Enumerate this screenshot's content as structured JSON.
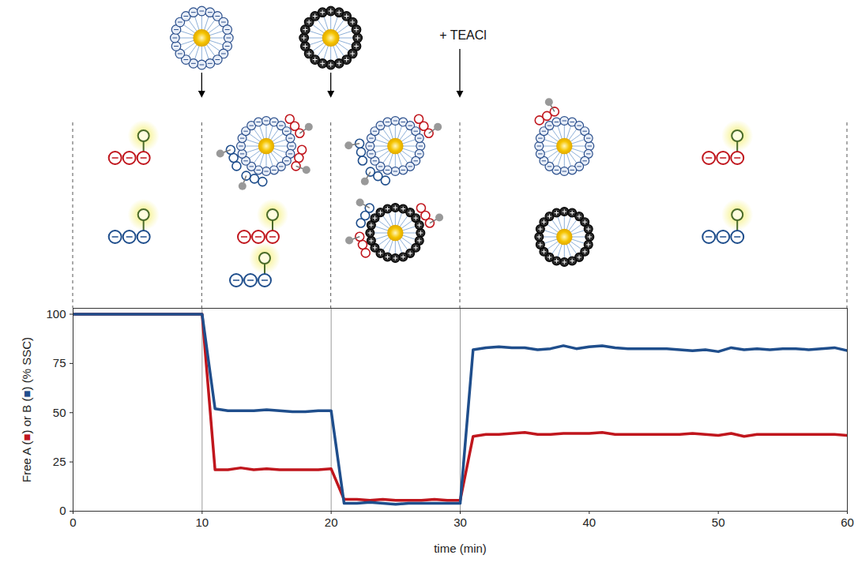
{
  "chart_data": {
    "type": "line",
    "x_label": "time (min)",
    "y_label": "Free A (■) or B (■) (% SSC)",
    "x": [
      0,
      1,
      2,
      3,
      4,
      5,
      6,
      7,
      8,
      9,
      10,
      11,
      12,
      13,
      14,
      15,
      16,
      17,
      18,
      19,
      20,
      21,
      22,
      23,
      24,
      25,
      26,
      27,
      28,
      29,
      30,
      31,
      32,
      33,
      34,
      35,
      36,
      37,
      38,
      39,
      40,
      41,
      42,
      43,
      44,
      45,
      46,
      47,
      48,
      49,
      50,
      51,
      52,
      53,
      54,
      55,
      56,
      57,
      58,
      59,
      60
    ],
    "series": [
      {
        "name": "A",
        "color": "#c0161d",
        "values": [
          100,
          100,
          100,
          100,
          100,
          100,
          100,
          100,
          100,
          100,
          100,
          21,
          21,
          22,
          21,
          21.5,
          21,
          21,
          21,
          21,
          21.5,
          6,
          6,
          5.5,
          6,
          5.5,
          5.5,
          5.5,
          6,
          5.5,
          5.5,
          38,
          39,
          39,
          39.5,
          40,
          39,
          39,
          39.5,
          39.5,
          39.5,
          40,
          39,
          39,
          39,
          39,
          39,
          39,
          39.5,
          39,
          38.5,
          39.5,
          38,
          39,
          39,
          39,
          39,
          39,
          39,
          39,
          38.5
        ]
      },
      {
        "name": "B",
        "color": "#1f4e8c",
        "values": [
          100,
          100,
          100,
          100,
          100,
          100,
          100,
          100,
          100,
          100,
          100,
          52,
          51,
          51,
          51,
          51.5,
          51,
          50.5,
          50.5,
          51,
          51,
          4,
          4,
          4.5,
          4,
          3.5,
          4,
          4,
          4,
          4,
          4,
          82,
          83,
          83.5,
          83,
          83,
          82,
          82.5,
          84,
          82.5,
          83.5,
          84,
          83,
          82.5,
          82.5,
          82.5,
          82.5,
          82,
          81.5,
          82,
          81,
          83,
          82,
          82.5,
          82,
          82.5,
          82.5,
          82,
          82.5,
          83,
          81.5
        ]
      }
    ],
    "xlim": [
      0,
      60
    ],
    "xticks": [
      0,
      10,
      20,
      30,
      40,
      50,
      60
    ],
    "ylim": [
      0,
      103
    ],
    "yticks": [
      0,
      25,
      50,
      75,
      100
    ],
    "grid": false,
    "event_lines": [
      10,
      20,
      30
    ],
    "annotations": [
      {
        "x": 30,
        "text": "+ TEACl"
      }
    ]
  }
}
